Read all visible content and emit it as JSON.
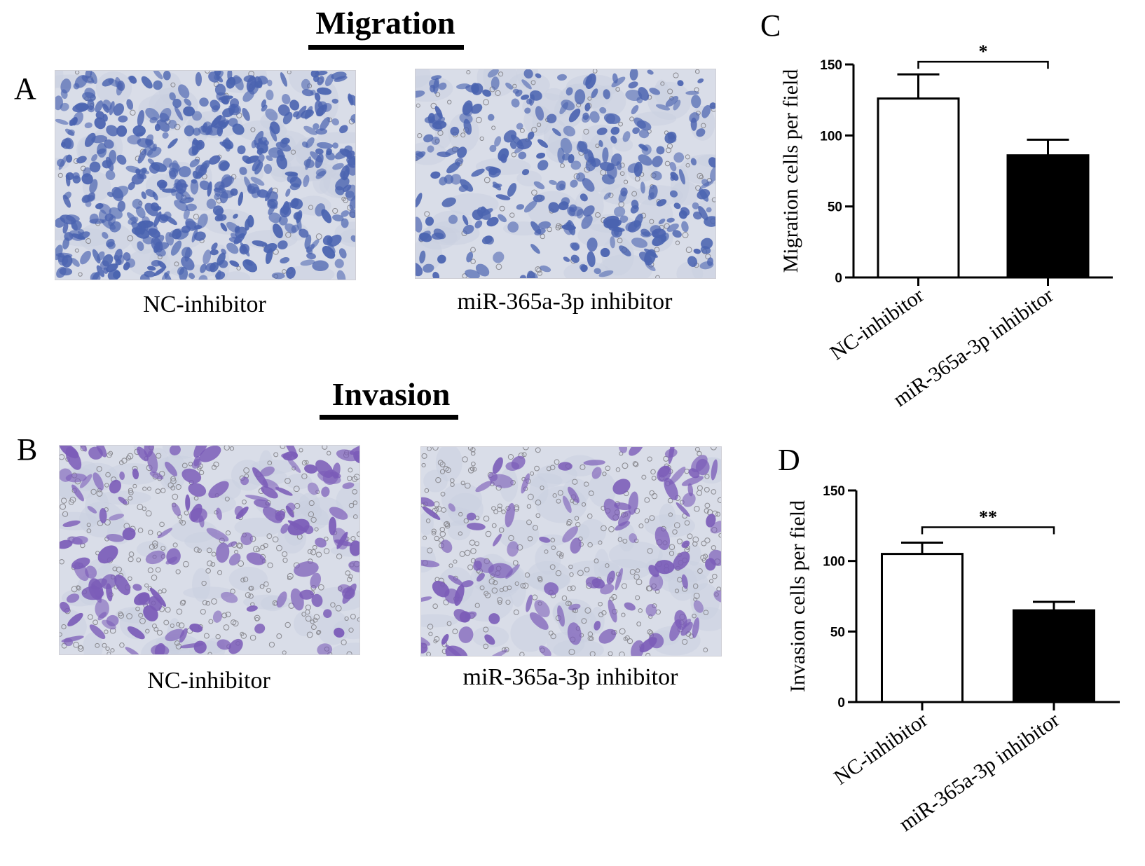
{
  "titles": {
    "migration": "Migration",
    "invasion": "Invasion"
  },
  "panels": {
    "a": "A",
    "b": "B",
    "c": "C",
    "d": "D"
  },
  "images": {
    "migration_left_caption": "NC-inhibitor",
    "migration_right_caption": "miR-365a-3p inhibitor",
    "invasion_left_caption": "NC-inhibitor",
    "invasion_right_caption": "miR-365a-3p inhibitor",
    "stain_migration": "#4a63b0",
    "stain_invasion": "#7b5cb8"
  },
  "chart_data": [
    {
      "type": "bar",
      "panel": "C",
      "categories": [
        "NC-inhibitor",
        "miR-365a-3p inhibitor"
      ],
      "values": [
        126,
        86
      ],
      "errors": [
        17,
        11
      ],
      "bar_colors": [
        "#ffffff",
        "#000000"
      ],
      "ylabel": "Migration cells per field",
      "ylim": [
        0,
        150
      ],
      "yticks": [
        0,
        50,
        100,
        150
      ],
      "significance": "*"
    },
    {
      "type": "bar",
      "panel": "D",
      "categories": [
        "NC-inhibitor",
        "miR-365a-3p inhibitor"
      ],
      "values": [
        105,
        65
      ],
      "errors": [
        8,
        6
      ],
      "bar_colors": [
        "#ffffff",
        "#000000"
      ],
      "ylabel": "Invasion cells per field",
      "ylim": [
        0,
        150
      ],
      "yticks": [
        0,
        50,
        100,
        150
      ],
      "significance": "**"
    }
  ]
}
